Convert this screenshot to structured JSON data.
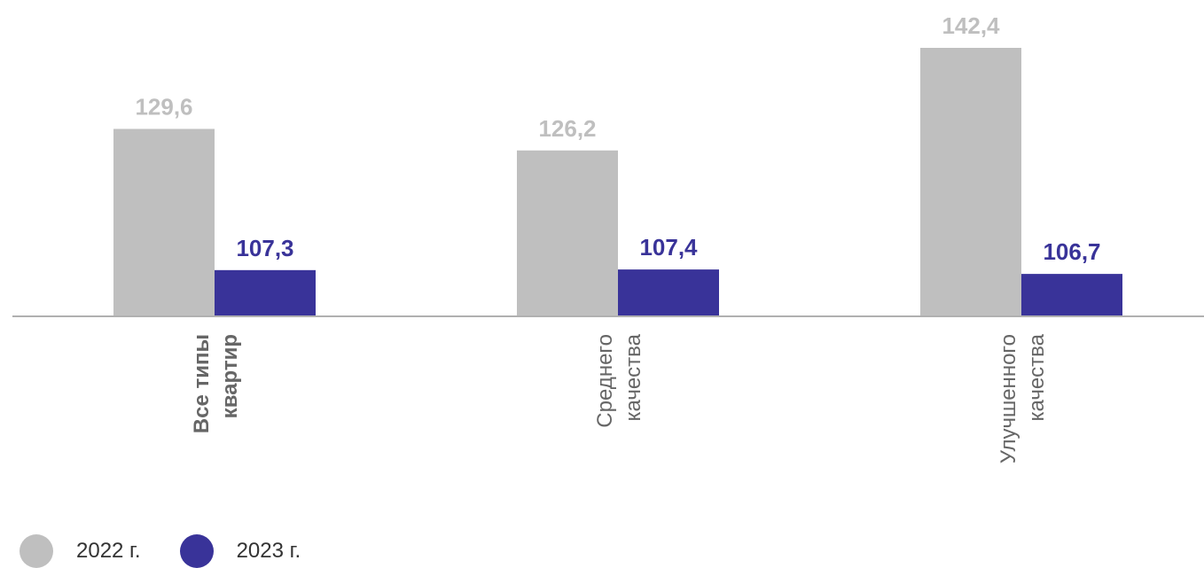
{
  "chart_data": {
    "type": "bar",
    "categories": [
      [
        "Все типы",
        "квартир"
      ],
      [
        "Среднего",
        "качества"
      ],
      [
        "Улучшенного",
        "качества"
      ]
    ],
    "category_bold": [
      true,
      false,
      false
    ],
    "series": [
      {
        "name": "2022 г.",
        "values": [
          129.6,
          126.2,
          142.4
        ],
        "labels": [
          "129,6",
          "126,2",
          "142,4"
        ],
        "color": "#bfbfbf"
      },
      {
        "name": "2023 г.",
        "values": [
          107.3,
          107.4,
          106.7
        ],
        "labels": [
          "107,3",
          "107,4",
          "106,7"
        ],
        "color": "#393399"
      }
    ],
    "ylim": [
      100,
      143
    ],
    "axis_color": "#b0b0b0",
    "grid": false,
    "legend_position": "bottom-left"
  }
}
